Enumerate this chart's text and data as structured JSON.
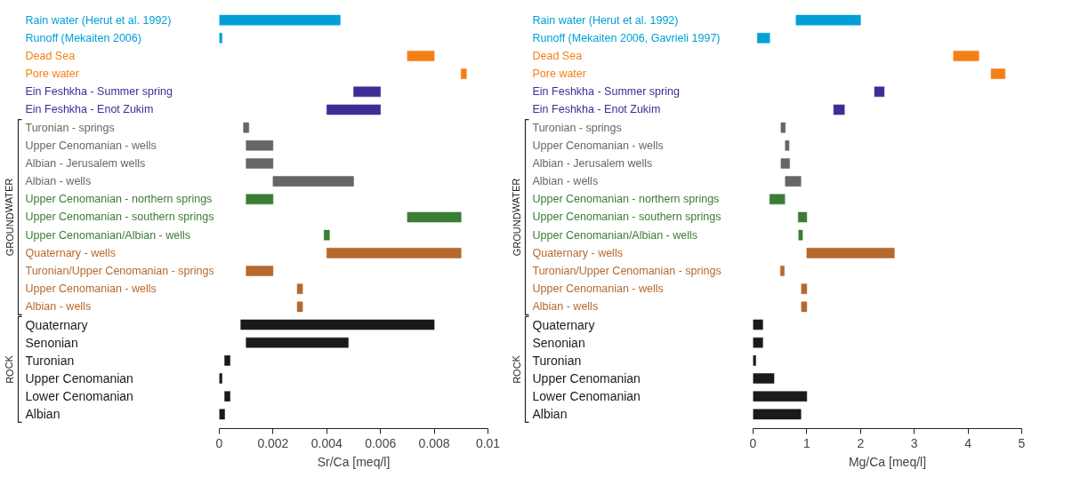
{
  "chart_data": [
    {
      "type": "bar",
      "orientation": "horizontal",
      "xlabel": "Sr/Ca [meq/l]",
      "xlim": [
        0,
        0.01
      ],
      "xticks": [
        0,
        0.002,
        0.004,
        0.006,
        0.008,
        0.01
      ],
      "annotations": [
        "GROUNDWATER",
        "ROCK"
      ],
      "categories": [
        "Rain water (Herut et al. 1992)",
        "Runoff  (Mekaiten 2006)",
        "Dead Sea",
        "Pore water",
        "Ein Feshkha - Summer spring",
        "Ein Feshkha - Enot Zukim",
        "Turonian - springs",
        "Upper  Cenomanian - wells",
        "Albian - Jerusalem wells",
        "Albian - wells",
        "Upper Cenomanian - northern springs",
        "Upper Cenomanian - southern springs",
        "Upper Cenomanian/Albian - wells",
        "Quaternary - wells",
        "Turonian/Upper Cenomanian - springs",
        "Upper Cenomanian - wells",
        "Albian - wells",
        "Quaternary",
        "Senonian",
        "Turonian",
        "Upper Cenomanian",
        "Lower Cenomanian",
        "Albian"
      ],
      "base": [
        0,
        0,
        0.007,
        0.009,
        0.005,
        0.004,
        0.0009,
        0.001,
        0.001,
        0.002,
        0.001,
        0.007,
        0.0039,
        0.004,
        0.001,
        0.0029,
        0.0029,
        0.0008,
        0.001,
        0.0002,
        0,
        0.0002,
        0
      ],
      "values": [
        0.0045,
        0.0001,
        0.001,
        0.0002,
        0.001,
        0.002,
        0.0002,
        0.001,
        0.001,
        0.003,
        0.001,
        0.002,
        0.0002,
        0.005,
        0.001,
        0.0002,
        0.0002,
        0.0072,
        0.0038,
        0.0002,
        0.0001,
        0.0002,
        0.0002
      ],
      "colors": [
        "#00a0d6",
        "#00a0d6",
        "#f57f17",
        "#f57f17",
        "#3c2e96",
        "#3c2e96",
        "#666666",
        "#666666",
        "#666666",
        "#666666",
        "#3a7d34",
        "#3a7d34",
        "#3a7d34",
        "#b5692e",
        "#b5692e",
        "#b5692e",
        "#b5692e",
        "#1a1a1a",
        "#1a1a1a",
        "#1a1a1a",
        "#1a1a1a",
        "#1a1a1a",
        "#1a1a1a"
      ]
    },
    {
      "type": "bar",
      "orientation": "horizontal",
      "xlabel": "Mg/Ca [meq/l]",
      "xlim": [
        0,
        5
      ],
      "xticks": [
        0,
        1,
        2,
        3,
        4,
        5
      ],
      "annotations": [
        "GROUNDWATER",
        "ROCK"
      ],
      "categories": [
        "Rain water (Herut et al. 1992)",
        "Runoff (Mekaiten 2006, Gavrieli 1997)",
        "Dead Sea",
        "Pore water",
        "Ein Feshkha - Summer spring",
        "Ein Feshkha - Enot Zukim",
        "Turonian - springs",
        "Upper  Cenomanian - wells",
        "Albian - Jerusalem wells",
        "Albian - wells",
        "Upper Cenomanian - northern springs",
        "Upper Cenomanian - southern springs",
        "Upper Cenomanian/Albian - wells",
        "Quaternary - wells",
        "Turonian/Upper Cenomanian - springs",
        "Upper Cenomanian - wells",
        "Albian - wells",
        "Quaternary",
        "Senonian",
        "Turonian",
        "Upper Cenomanian",
        "Lower Cenomanian",
        "Albian"
      ],
      "base": [
        0.8,
        0.08,
        3.73,
        4.43,
        2.26,
        1.5,
        0.52,
        0.6,
        0.52,
        0.6,
        0.31,
        0.84,
        0.85,
        1.0,
        0.51,
        0.9,
        0.9,
        0,
        0,
        0,
        0,
        0,
        0
      ],
      "values": [
        1.2,
        0.23,
        0.47,
        0.26,
        0.18,
        0.2,
        0.08,
        0.07,
        0.16,
        0.29,
        0.28,
        0.16,
        0.07,
        1.63,
        0.07,
        0.1,
        0.1,
        0.18,
        0.18,
        0.05,
        0.39,
        1.0,
        0.89
      ],
      "colors": [
        "#00a0d6",
        "#00a0d6",
        "#f57f17",
        "#f57f17",
        "#3c2e96",
        "#3c2e96",
        "#666666",
        "#666666",
        "#666666",
        "#666666",
        "#3a7d34",
        "#3a7d34",
        "#3a7d34",
        "#b5692e",
        "#b5692e",
        "#b5692e",
        "#b5692e",
        "#1a1a1a",
        "#1a1a1a",
        "#1a1a1a",
        "#1a1a1a",
        "#1a1a1a",
        "#1a1a1a"
      ]
    }
  ]
}
